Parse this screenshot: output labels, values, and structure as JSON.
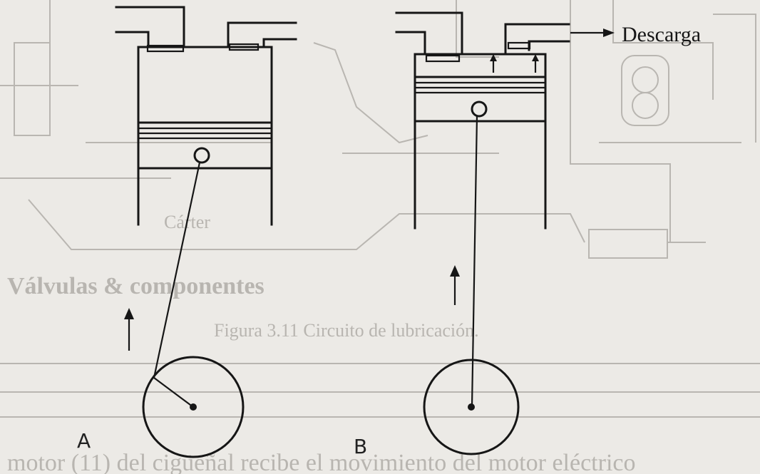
{
  "labels": {
    "exhaust": "Descarga",
    "diagram_a": "A",
    "diagram_b": "B"
  },
  "bleed_through": {
    "caption": "Figura 3.11 Circuito de lubricación.",
    "heading": "Válvulas & componentes",
    "carter": "Cárter",
    "bottom_line": "motor (11) del cigüeñal recibe el movimiento del motor eléctrico"
  },
  "colors": {
    "ink": "#161616",
    "paper": "#eceae6",
    "ghost": "#b9b6b1"
  }
}
